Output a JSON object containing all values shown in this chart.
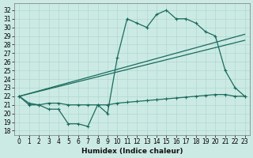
{
  "xlabel": "Humidex (Indice chaleur)",
  "ylabel": "",
  "background_color": "#cceae4",
  "line_color": "#1a6b5e",
  "grid_color": "#b0d8d0",
  "xlim": [
    -0.5,
    23.5
  ],
  "ylim": [
    17.5,
    32.8
  ],
  "yticks": [
    18,
    19,
    20,
    21,
    22,
    23,
    24,
    25,
    26,
    27,
    28,
    29,
    30,
    31,
    32
  ],
  "xticks": [
    0,
    1,
    2,
    3,
    4,
    5,
    6,
    7,
    8,
    9,
    10,
    11,
    12,
    13,
    14,
    15,
    16,
    17,
    18,
    19,
    20,
    21,
    22,
    23
  ],
  "series1_x": [
    0,
    1,
    2,
    3,
    4,
    5,
    6,
    7,
    8,
    9,
    10,
    11,
    12,
    13,
    14,
    15,
    16,
    17,
    18,
    19,
    20,
    21,
    22,
    23
  ],
  "series1_y": [
    22.0,
    21.0,
    21.0,
    20.5,
    20.5,
    18.8,
    18.8,
    18.5,
    21.0,
    20.0,
    26.5,
    31.0,
    30.5,
    30.0,
    31.5,
    32.0,
    31.0,
    31.0,
    30.5,
    29.5,
    29.0,
    25.0,
    23.0,
    22.0
  ],
  "series2_x": [
    0,
    23
  ],
  "series2_y": [
    22.0,
    29.2
  ],
  "series3_x": [
    0,
    23
  ],
  "series3_y": [
    22.0,
    28.5
  ],
  "series4_x": [
    0,
    1,
    2,
    3,
    4,
    5,
    6,
    7,
    8,
    9,
    10,
    11,
    12,
    13,
    14,
    15,
    16,
    17,
    18,
    19,
    20,
    21,
    22,
    23
  ],
  "series4_y": [
    22.0,
    21.2,
    21.0,
    21.2,
    21.2,
    21.0,
    21.0,
    21.0,
    21.0,
    21.0,
    21.2,
    21.3,
    21.4,
    21.5,
    21.6,
    21.7,
    21.8,
    21.9,
    22.0,
    22.1,
    22.2,
    22.2,
    22.0,
    22.0
  ]
}
